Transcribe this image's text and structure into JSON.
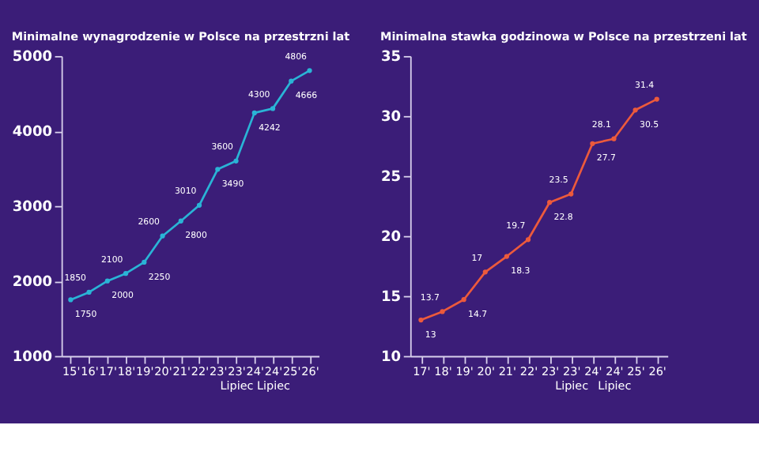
{
  "chart_data": [
    {
      "type": "line",
      "title": "Minimalne wynagrodzenie w Polsce na przestrzni lat",
      "categories": [
        "15'",
        "16'",
        "17'",
        "18'",
        "19'",
        "20'",
        "21'",
        "22'",
        "23'",
        "23'\nLipiec",
        "24'",
        "24'\nLipiec",
        "25'",
        "26'"
      ],
      "series": [
        {
          "color": "#2ab4d6",
          "values": [
            1750,
            1850,
            2000,
            2100,
            2250,
            2600,
            2800,
            3010,
            3490,
            3600,
            4242,
            4300,
            4666,
            4806
          ]
        }
      ],
      "ylim": [
        1000,
        5000
      ],
      "yticks": [
        1000,
        2000,
        3000,
        4000,
        5000
      ],
      "grid": false,
      "marker": "circle",
      "data_labels": true
    },
    {
      "type": "line",
      "title": "Minimalna stawka godzinowa w Polsce na przestrzeni lat",
      "categories": [
        "17'",
        "18'",
        "19'",
        "20'",
        "21'",
        "22'",
        "23'",
        "23'\nLipiec",
        "24'",
        "24'\nLipiec",
        "25'",
        "26'"
      ],
      "series": [
        {
          "color": "#ec5a3c",
          "values": [
            13,
            13.7,
            14.7,
            17,
            18.3,
            19.7,
            22.8,
            23.5,
            27.7,
            28.1,
            30.5,
            31.4
          ]
        }
      ],
      "ylim": [
        10,
        35
      ],
      "yticks": [
        10,
        15,
        20,
        25,
        30,
        35
      ],
      "grid": false,
      "marker": "circle",
      "data_labels": true
    }
  ]
}
